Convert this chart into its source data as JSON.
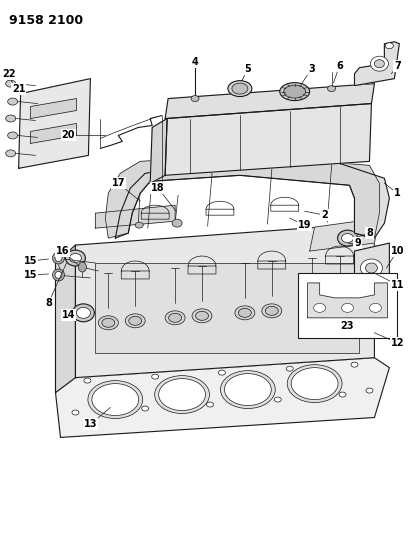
{
  "title": "9158 2100",
  "title_fontsize": 9,
  "title_fontweight": "bold",
  "bg_color": "#ffffff",
  "line_color": "#1a1a1a",
  "figsize": [
    4.11,
    5.33
  ],
  "dpi": 100,
  "lw_thin": 0.5,
  "lw_med": 0.8,
  "lw_thick": 1.1
}
